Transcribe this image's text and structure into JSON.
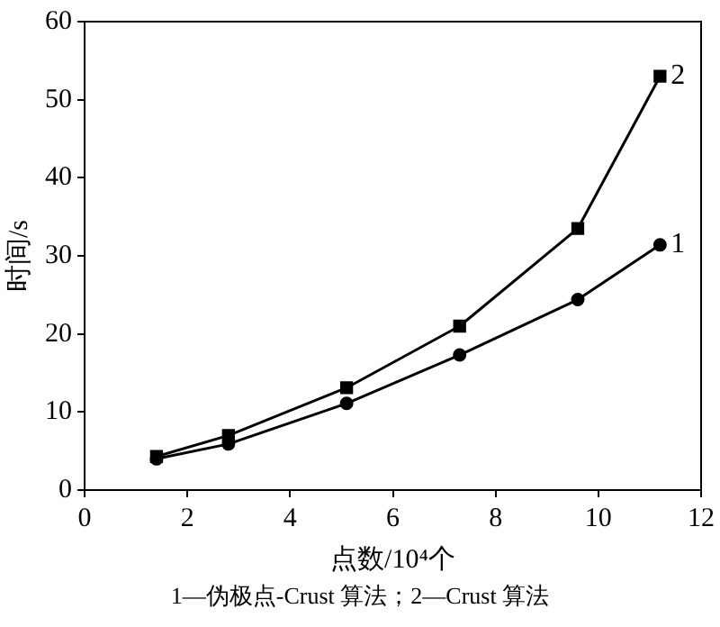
{
  "chart_data": {
    "type": "line",
    "xlabel": "点数/10⁴个",
    "ylabel": "时间/s",
    "annotations": [
      "1—伪极点-Crust 算法；2—Crust 算法"
    ],
    "xlim": [
      0,
      12
    ],
    "xticks": [
      0,
      2,
      4,
      6,
      8,
      10,
      12
    ],
    "ylim": [
      0,
      60
    ],
    "yticks": [
      0,
      10,
      20,
      30,
      40,
      50,
      60
    ],
    "grid": false,
    "legend": false,
    "line_style": "solid",
    "series": [
      {
        "name": "1",
        "color": "#000000",
        "marker": "circle",
        "x": [
          1.4,
          2.8,
          5.1,
          7.3,
          9.6,
          11.2
        ],
        "values": [
          4.0,
          5.9,
          11.1,
          17.3,
          24.4,
          31.4
        ]
      },
      {
        "name": "2",
        "color": "#000000",
        "marker": "square",
        "x": [
          1.4,
          2.8,
          5.1,
          7.3,
          9.6,
          11.2
        ],
        "values": [
          4.3,
          7.0,
          13.1,
          21.0,
          33.5,
          53.0
        ]
      }
    ]
  }
}
